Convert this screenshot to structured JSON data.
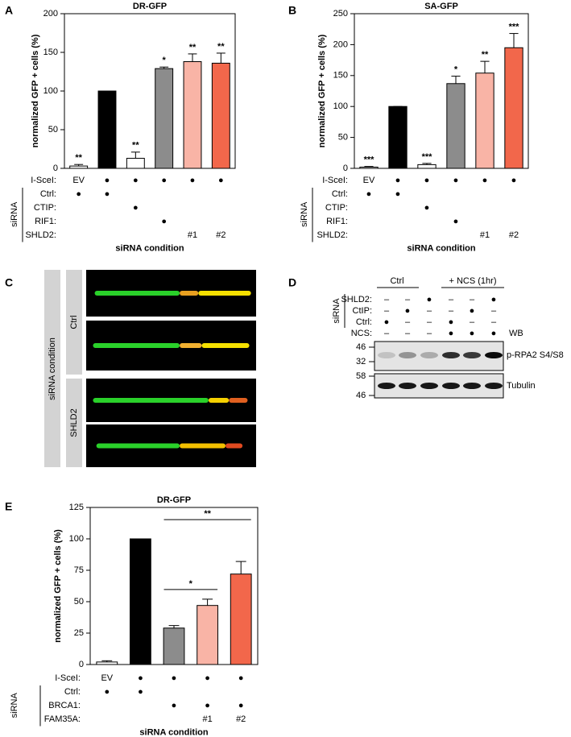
{
  "chart_data": [
    {
      "type": "bar",
      "panel": "A",
      "title": "DR-GFP",
      "y_label": "normalized GFP + cells (%)",
      "x_label": "siRNA condition",
      "group_label": "siRNA",
      "ylim": [
        0,
        200
      ],
      "yticks": [
        0,
        50,
        100,
        150,
        200
      ],
      "values": [
        3,
        100,
        13,
        129,
        138,
        136
      ],
      "errors": [
        2,
        0,
        8,
        2,
        10,
        13
      ],
      "colors": [
        "#ffffff",
        "#000000",
        "#ffffff",
        "#8c8c8c",
        "#f9b4a6",
        "#f2674b"
      ],
      "significance": [
        "**",
        null,
        "**",
        "*",
        "**",
        "**"
      ],
      "conditions": [
        {
          "label": "I-SceI:",
          "cells": [
            "EV",
            "●",
            "●",
            "●",
            "●",
            "●"
          ]
        },
        {
          "label": "Ctrl:",
          "cells": [
            "●",
            "●",
            null,
            null,
            null,
            null
          ]
        },
        {
          "label": "CTIP:",
          "cells": [
            null,
            null,
            "●",
            null,
            null,
            null
          ]
        },
        {
          "label": "RIF1:",
          "cells": [
            null,
            null,
            null,
            "●",
            null,
            null
          ]
        },
        {
          "label": "SHLD2:",
          "cells": [
            null,
            null,
            null,
            null,
            "#1",
            "#2"
          ]
        }
      ]
    },
    {
      "type": "bar",
      "panel": "B",
      "title": "SA-GFP",
      "y_label": "normalized GFP + cells (%)",
      "x_label": "siRNA condition",
      "group_label": "siRNA",
      "ylim": [
        0,
        250
      ],
      "yticks": [
        0,
        50,
        100,
        150,
        200,
        250
      ],
      "values": [
        2,
        100,
        6,
        137,
        154,
        195
      ],
      "errors": [
        1,
        0,
        2,
        12,
        19,
        23
      ],
      "colors": [
        "#ffffff",
        "#000000",
        "#ffffff",
        "#8c8c8c",
        "#f9b4a6",
        "#f2674b"
      ],
      "significance": [
        "***",
        null,
        "***",
        "*",
        "**",
        "***"
      ],
      "conditions": [
        {
          "label": "I-SceI:",
          "cells": [
            "EV",
            "●",
            "●",
            "●",
            "●",
            "●"
          ]
        },
        {
          "label": "Ctrl:",
          "cells": [
            "●",
            "●",
            null,
            null,
            null,
            null
          ]
        },
        {
          "label": "CTIP:",
          "cells": [
            null,
            null,
            "●",
            null,
            null,
            null
          ]
        },
        {
          "label": "RIF1:",
          "cells": [
            null,
            null,
            null,
            "●",
            null,
            null
          ]
        },
        {
          "label": "SHLD2:",
          "cells": [
            null,
            null,
            null,
            null,
            "#1",
            "#2"
          ]
        }
      ]
    },
    {
      "type": "bar",
      "panel": "E",
      "title": "DR-GFP",
      "y_label": "normalized GFP + cells (%)",
      "x_label": "siRNA condition",
      "group_label": "siRNA",
      "ylim": [
        0,
        125
      ],
      "yticks": [
        0,
        25,
        50,
        75,
        100,
        125
      ],
      "values": [
        2,
        100,
        29,
        47,
        72
      ],
      "errors": [
        1,
        0,
        2,
        5,
        10
      ],
      "colors": [
        "#ffffff",
        "#000000",
        "#8c8c8c",
        "#f9b4a6",
        "#f2674b"
      ],
      "brackets": [
        {
          "label": "*",
          "bars": [
            2,
            3
          ]
        },
        {
          "label": "**",
          "bars": [
            2,
            4
          ]
        }
      ],
      "conditions": [
        {
          "label": "I-SceI:",
          "cells": [
            "EV",
            "●",
            "●",
            "●",
            "●"
          ]
        },
        {
          "label": "Ctrl:",
          "cells": [
            "●",
            "●",
            null,
            null,
            null
          ]
        },
        {
          "label": "BRCA1:",
          "cells": [
            null,
            null,
            "●",
            "●",
            "●"
          ]
        },
        {
          "label": "FAM35A:",
          "cells": [
            null,
            null,
            null,
            "#1",
            "#2"
          ]
        }
      ]
    }
  ],
  "panel_c": {
    "panel": "C",
    "group_label": "siRNA condition",
    "rows": [
      "Ctrl",
      "SHLD2"
    ]
  },
  "panel_d": {
    "panel": "D",
    "group_label": "siRNA",
    "headers": [
      "Ctrl",
      "+ NCS (1hr)"
    ],
    "rows": [
      {
        "label": "SHLD2:",
        "cells": [
          "–",
          "–",
          "●",
          "–",
          "–",
          "●"
        ]
      },
      {
        "label": "CtIP:",
        "cells": [
          "–",
          "●",
          "–",
          "–",
          "●",
          "–"
        ]
      },
      {
        "label": "Ctrl:",
        "cells": [
          "●",
          "–",
          "–",
          "●",
          "–",
          "–"
        ]
      },
      {
        "label": "NCS:",
        "cells": [
          "–",
          "–",
          "–",
          "●",
          "●",
          "●"
        ]
      }
    ],
    "wb_label": "WB",
    "blots": [
      {
        "label": "p-RPA2 S4/S8",
        "markers": [
          "46",
          "32"
        ]
      },
      {
        "label": "Tubulin",
        "markers": [
          "58",
          "46"
        ]
      }
    ]
  }
}
